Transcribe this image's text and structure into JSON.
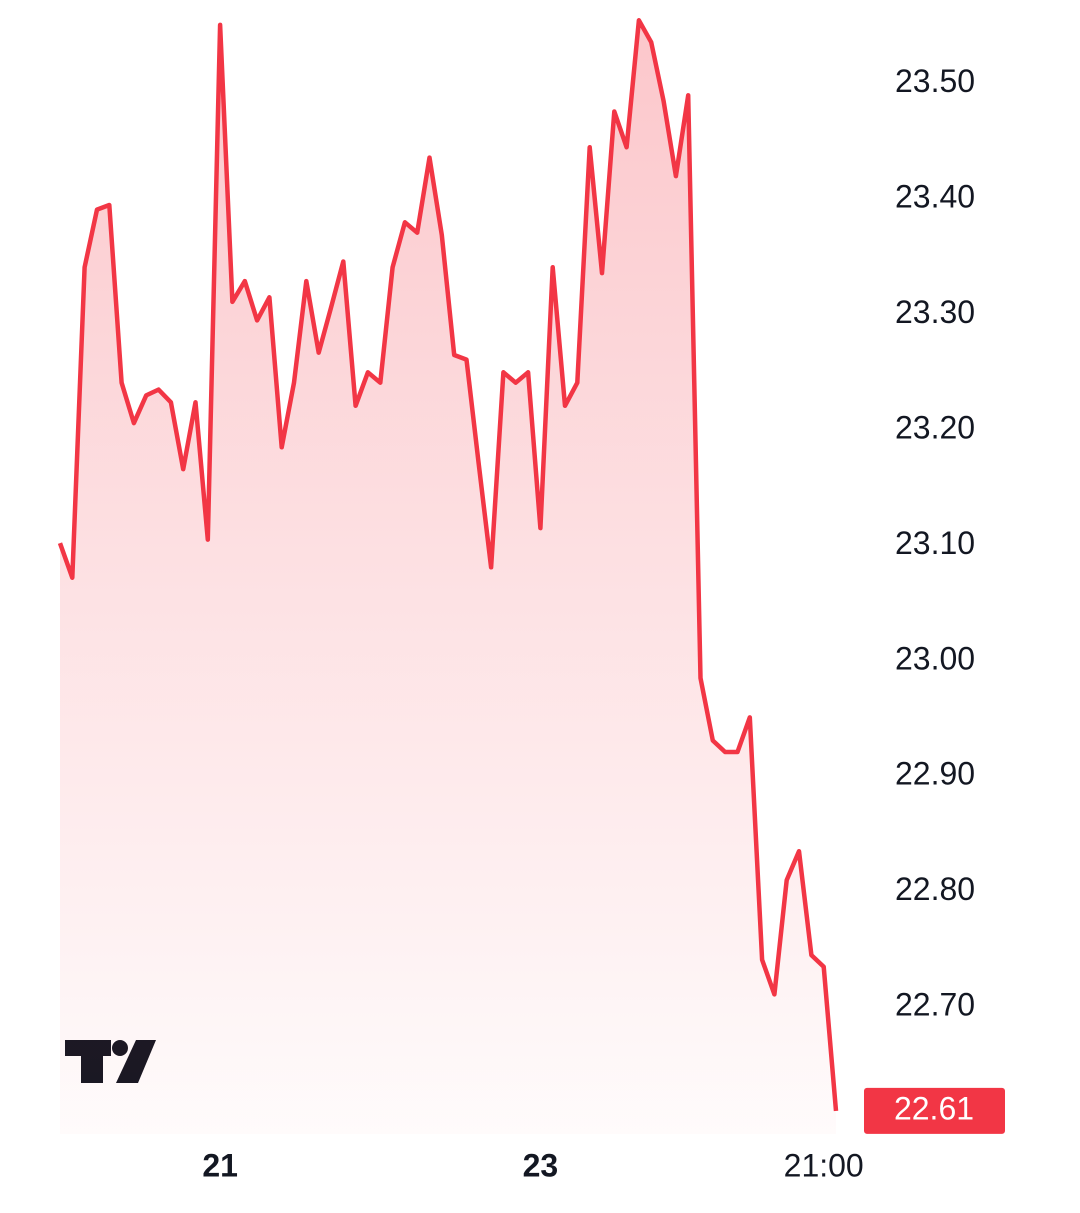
{
  "chart_data": {
    "type": "area",
    "color": "#f23645",
    "categories": [
      null,
      null,
      null,
      null,
      null,
      null,
      null,
      null,
      null,
      null,
      null,
      null,
      null,
      "21",
      null,
      null,
      null,
      null,
      null,
      null,
      null,
      null,
      null,
      null,
      null,
      null,
      null,
      null,
      null,
      null,
      null,
      null,
      null,
      null,
      null,
      null,
      null,
      null,
      null,
      "23",
      null,
      null,
      null,
      null,
      null,
      null,
      null,
      null,
      null,
      null,
      null,
      null,
      null,
      null,
      null,
      null,
      null,
      null,
      null,
      null,
      null,
      null,
      "21:00",
      null
    ],
    "values": [
      23.102,
      23.072,
      23.341,
      23.391,
      23.395,
      23.241,
      23.206,
      23.23,
      23.235,
      23.224,
      23.166,
      23.224,
      23.105,
      23.551,
      23.311,
      23.329,
      23.295,
      23.315,
      23.185,
      23.241,
      23.329,
      23.267,
      23.306,
      23.346,
      23.221,
      23.25,
      23.241,
      23.341,
      23.38,
      23.371,
      23.436,
      23.369,
      23.265,
      23.261,
      23.17,
      23.081,
      23.25,
      23.241,
      23.25,
      23.115,
      23.341,
      23.221,
      23.241,
      23.445,
      23.336,
      23.476,
      23.445,
      23.555,
      23.536,
      23.485,
      23.42,
      23.49,
      22.985,
      22.931,
      22.921,
      22.921,
      22.951,
      22.741,
      22.711,
      22.81,
      22.835,
      22.745,
      22.735,
      22.61
    ],
    "ylim": [
      22.59,
      23.57
    ],
    "yticks": [
      {
        "value": 22.7,
        "label": "22.70"
      },
      {
        "value": 22.8,
        "label": "22.80"
      },
      {
        "value": 22.9,
        "label": "22.90"
      },
      {
        "value": 23.0,
        "label": "23.00"
      },
      {
        "value": 23.1,
        "label": "23.10"
      },
      {
        "value": 23.2,
        "label": "23.20"
      },
      {
        "value": 23.3,
        "label": "23.30"
      },
      {
        "value": 23.4,
        "label": "23.40"
      },
      {
        "value": 23.5,
        "label": "23.50"
      }
    ]
  }
}
